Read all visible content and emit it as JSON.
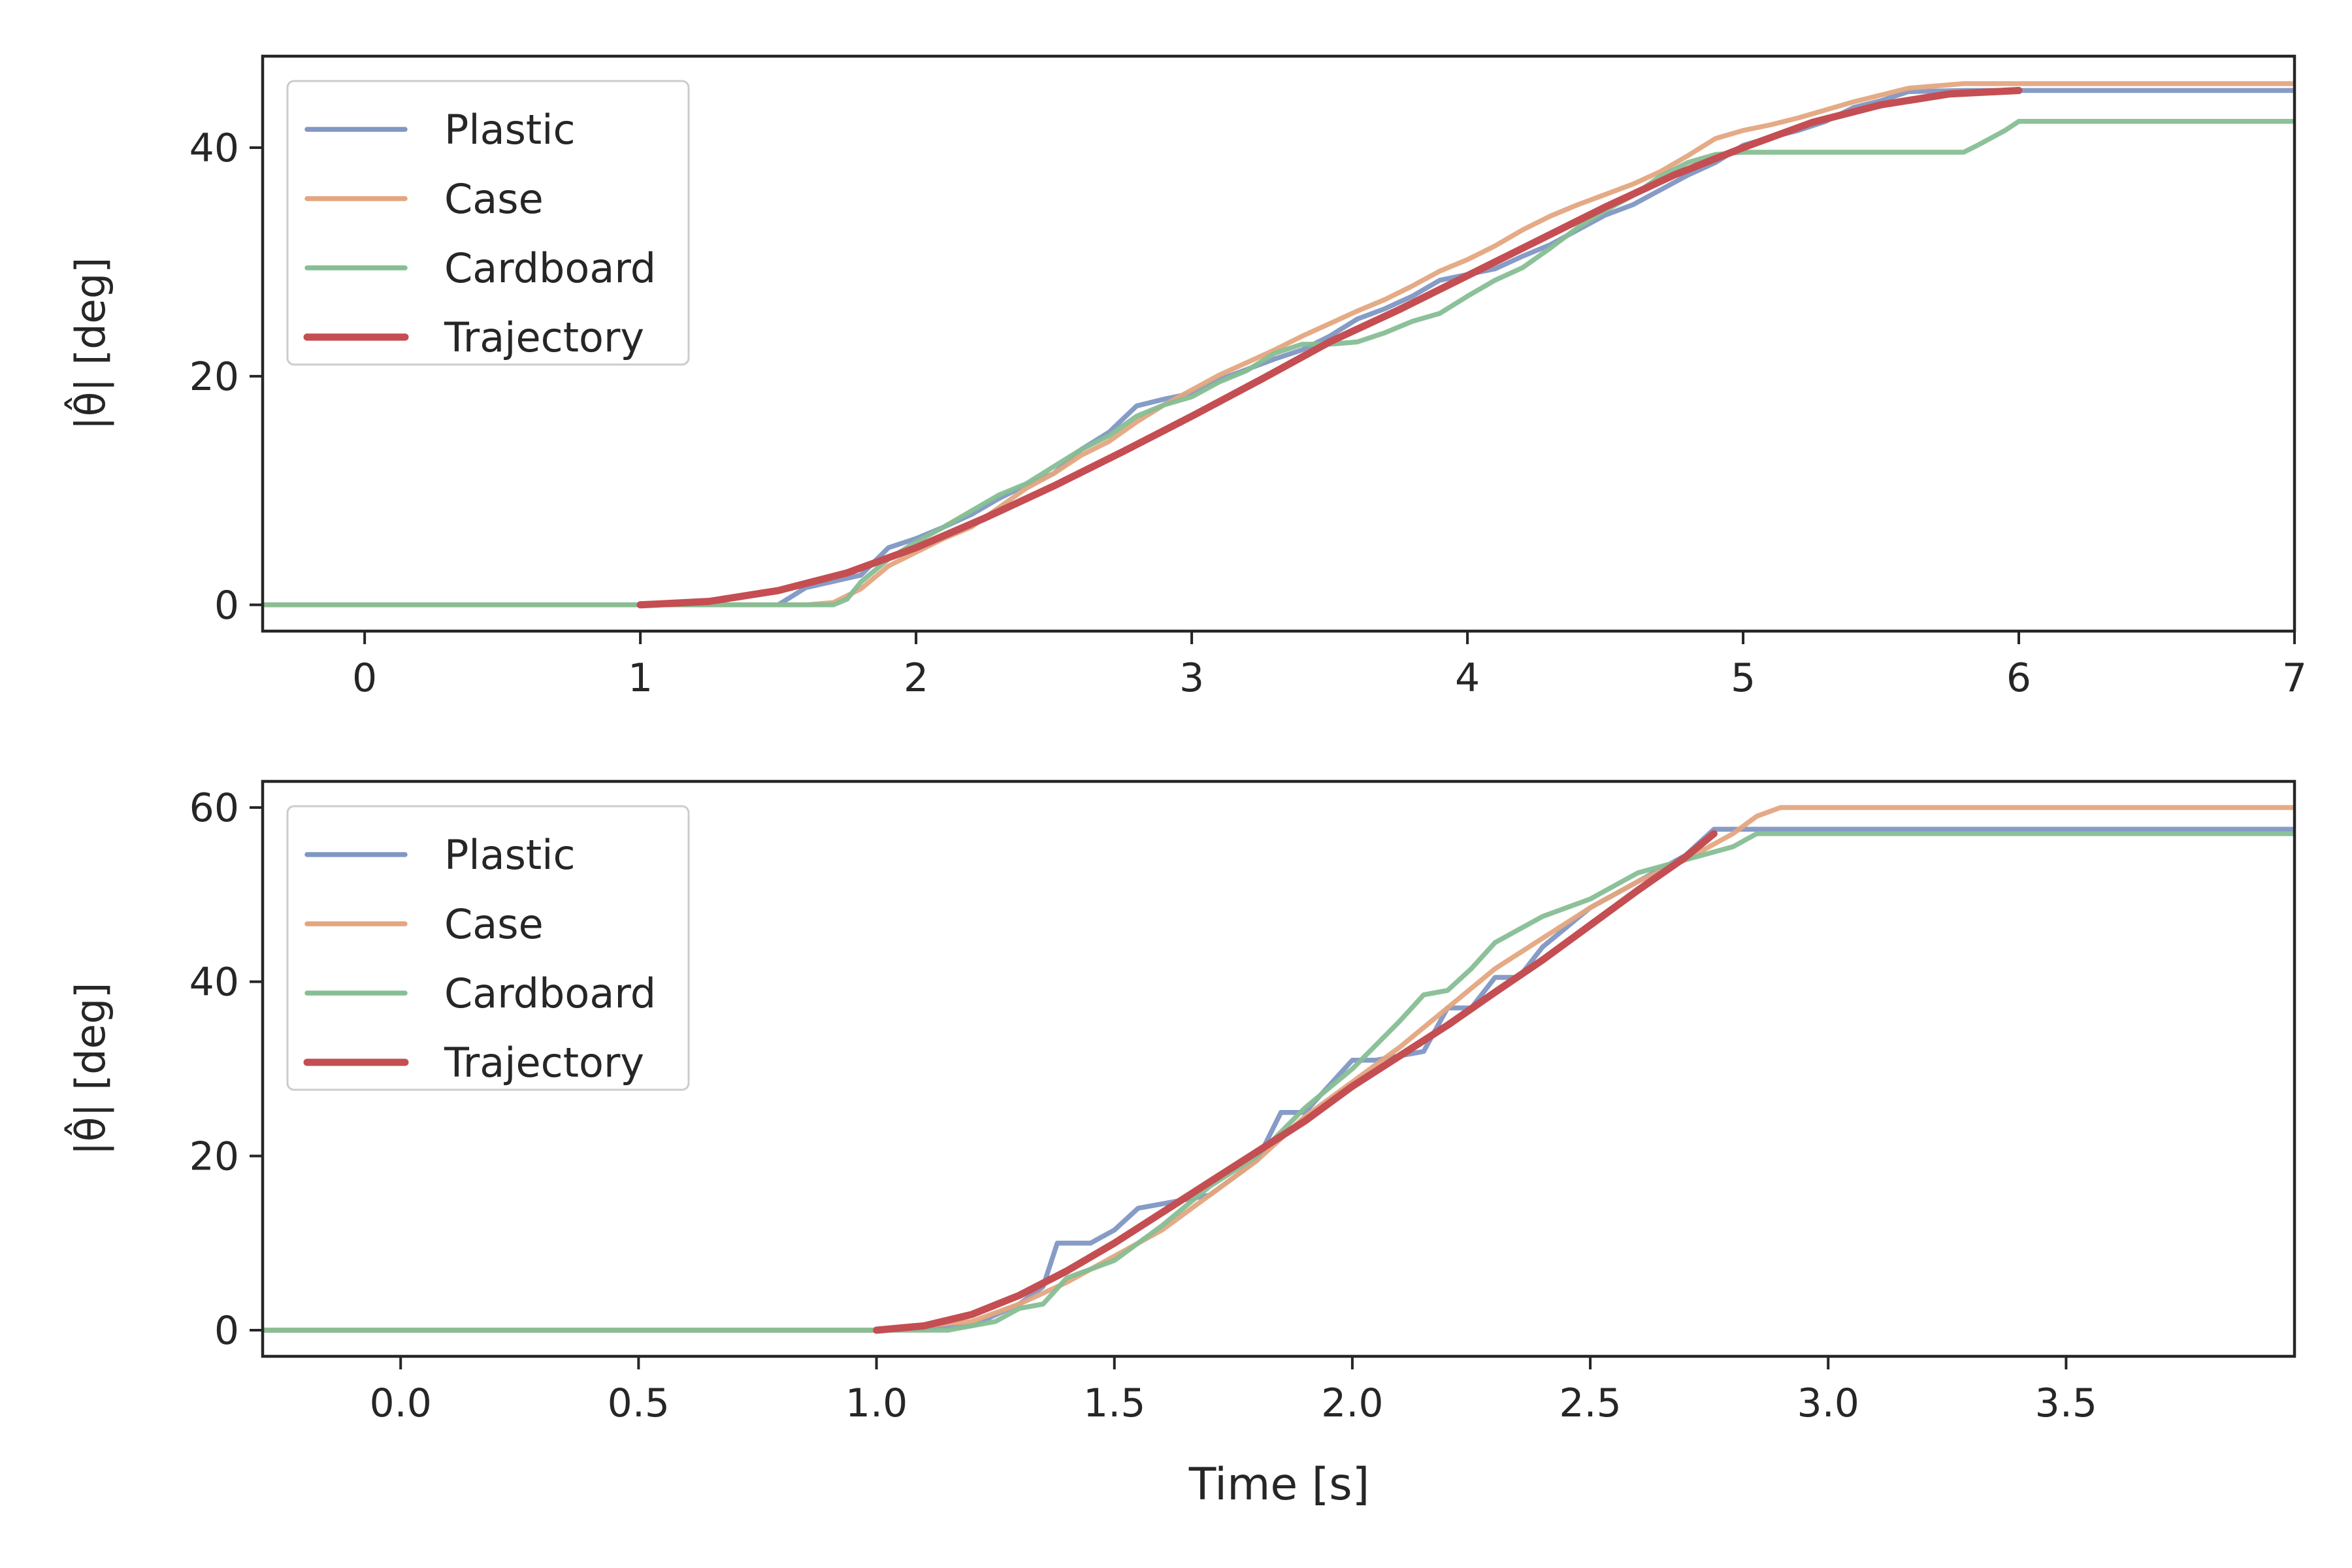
{
  "figure": {
    "xlabel": "Time [s]"
  },
  "chart_data": [
    {
      "type": "line",
      "title": "",
      "ylabel": "|θ̂| [deg]",
      "xlabel": "",
      "xlim": [
        -0.37,
        7.0
      ],
      "ylim": [
        -2.3,
        48.0
      ],
      "xticks": [
        0,
        1,
        2,
        3,
        4,
        5,
        6,
        7
      ],
      "xtick_labels": [
        "0",
        "1",
        "2",
        "3",
        "4",
        "5",
        "6",
        "7"
      ],
      "yticks": [
        0,
        20,
        40
      ],
      "ytick_labels": [
        "0",
        "20",
        "40"
      ],
      "legend_position": "top-left",
      "series": [
        {
          "name": "Plastic",
          "color": "#8097c4",
          "x": [
            -0.37,
            1.0,
            1.5,
            1.6,
            1.8,
            1.9,
            2.0,
            2.1,
            2.2,
            2.3,
            2.4,
            2.5,
            2.6,
            2.7,
            2.8,
            2.9,
            3.0,
            3.1,
            3.2,
            3.3,
            3.4,
            3.5,
            3.6,
            3.7,
            3.8,
            3.9,
            4.0,
            4.1,
            4.2,
            4.3,
            4.4,
            4.5,
            4.6,
            4.7,
            4.8,
            4.9,
            5.0,
            5.1,
            5.2,
            5.3,
            5.4,
            5.5,
            5.6,
            5.8,
            6.0,
            7.0
          ],
          "y": [
            0,
            0,
            0,
            1.5,
            2.6,
            5.0,
            5.8,
            6.8,
            7.9,
            9.3,
            10.5,
            11.5,
            13.6,
            15.1,
            17.4,
            18.0,
            18.5,
            19.7,
            20.6,
            21.5,
            22.3,
            23.5,
            25.0,
            25.9,
            27.0,
            28.4,
            28.9,
            29.4,
            30.5,
            31.5,
            32.8,
            34.1,
            35.0,
            36.3,
            37.6,
            38.7,
            40.2,
            40.9,
            41.5,
            42.3,
            43.5,
            44.1,
            44.9,
            45.0,
            45.0,
            45.0
          ]
        },
        {
          "name": "Case",
          "color": "#e4a580",
          "x": [
            -0.37,
            1.0,
            1.6,
            1.7,
            1.8,
            1.9,
            2.0,
            2.1,
            2.2,
            2.3,
            2.4,
            2.5,
            2.6,
            2.7,
            2.8,
            2.9,
            3.0,
            3.1,
            3.2,
            3.3,
            3.4,
            3.5,
            3.6,
            3.7,
            3.8,
            3.9,
            4.0,
            4.1,
            4.2,
            4.3,
            4.4,
            4.5,
            4.6,
            4.7,
            4.8,
            4.9,
            5.0,
            5.1,
            5.2,
            5.3,
            5.4,
            5.5,
            5.6,
            5.8,
            6.0,
            7.0
          ],
          "y": [
            0,
            0,
            0,
            0.2,
            1.4,
            3.4,
            4.6,
            5.8,
            6.8,
            8.5,
            10.2,
            11.5,
            13.1,
            14.3,
            16.0,
            17.5,
            18.8,
            20.1,
            21.2,
            22.3,
            23.5,
            24.6,
            25.7,
            26.7,
            27.9,
            29.2,
            30.2,
            31.4,
            32.8,
            34.0,
            35.0,
            35.9,
            36.8,
            37.9,
            39.3,
            40.8,
            41.5,
            42.0,
            42.6,
            43.3,
            44.0,
            44.6,
            45.2,
            45.6,
            45.6,
            45.6
          ]
        },
        {
          "name": "Cardboard",
          "color": "#86be94",
          "x": [
            -0.37,
            1.0,
            1.7,
            1.75,
            1.8,
            1.9,
            2.0,
            2.1,
            2.2,
            2.3,
            2.4,
            2.5,
            2.6,
            2.7,
            2.8,
            2.9,
            3.0,
            3.1,
            3.2,
            3.3,
            3.4,
            3.5,
            3.6,
            3.7,
            3.8,
            3.9,
            4.0,
            4.1,
            4.2,
            4.3,
            4.4,
            4.5,
            4.6,
            4.7,
            4.8,
            4.9,
            5.0,
            5.5,
            5.8,
            5.85,
            5.95,
            6.0,
            7.0
          ],
          "y": [
            0,
            0,
            0,
            0.5,
            2.0,
            4.0,
            5.5,
            6.8,
            8.2,
            9.6,
            10.6,
            12.1,
            13.6,
            14.8,
            16.5,
            17.5,
            18.2,
            19.5,
            20.5,
            22.0,
            22.8,
            22.8,
            23.0,
            23.8,
            24.8,
            25.5,
            27.0,
            28.4,
            29.5,
            31.2,
            33.0,
            34.5,
            35.8,
            37.5,
            38.7,
            39.4,
            39.6,
            39.6,
            39.6,
            40.2,
            41.5,
            42.3,
            42.3
          ]
        },
        {
          "name": "Trajectory",
          "color": "#c44e52",
          "x": [
            1.0,
            1.25,
            1.5,
            1.75,
            2.0,
            2.25,
            2.5,
            2.75,
            3.0,
            3.25,
            3.5,
            3.75,
            4.0,
            4.25,
            4.5,
            4.75,
            5.0,
            5.25,
            5.5,
            5.75,
            6.0
          ],
          "y": [
            0,
            0.3,
            1.25,
            2.8,
            5.0,
            7.6,
            10.4,
            13.4,
            16.5,
            19.7,
            23.0,
            25.8,
            28.8,
            31.8,
            34.8,
            37.6,
            40.0,
            42.2,
            43.75,
            44.7,
            45.0
          ]
        }
      ]
    },
    {
      "type": "line",
      "title": "",
      "ylabel": "|θ̂| [deg]",
      "xlabel": "Time [s]",
      "xlim": [
        -0.29,
        3.98
      ],
      "ylim": [
        -3.0,
        63.0
      ],
      "xticks": [
        0.0,
        0.5,
        1.0,
        1.5,
        2.0,
        2.5,
        3.0,
        3.5
      ],
      "xtick_labels": [
        "0.0",
        "0.5",
        "1.0",
        "1.5",
        "2.0",
        "2.5",
        "3.0",
        "3.5"
      ],
      "yticks": [
        0,
        20,
        40,
        60
      ],
      "ytick_labels": [
        "0",
        "20",
        "40",
        "60"
      ],
      "legend_position": "top-left",
      "series": [
        {
          "name": "Plastic",
          "color": "#8097c4",
          "x": [
            -0.29,
            1.0,
            1.2,
            1.3,
            1.35,
            1.38,
            1.45,
            1.5,
            1.55,
            1.6,
            1.7,
            1.8,
            1.85,
            1.9,
            2.0,
            2.05,
            2.1,
            2.15,
            2.2,
            2.25,
            2.3,
            2.35,
            2.4,
            2.5,
            2.6,
            2.7,
            2.76,
            3.0,
            3.98
          ],
          "y": [
            0,
            0,
            0.5,
            3.0,
            5.0,
            10.0,
            10.0,
            11.5,
            14.0,
            14.5,
            15.5,
            19.5,
            25.0,
            25.0,
            31.0,
            31.0,
            31.5,
            32.0,
            37.0,
            37.0,
            40.5,
            40.5,
            44.0,
            48.5,
            51.5,
            54.5,
            57.5,
            57.5,
            57.5
          ]
        },
        {
          "name": "Case",
          "color": "#e4a580",
          "x": [
            -0.29,
            1.0,
            1.2,
            1.3,
            1.4,
            1.5,
            1.6,
            1.7,
            1.8,
            1.9,
            2.0,
            2.1,
            2.2,
            2.3,
            2.4,
            2.5,
            2.6,
            2.7,
            2.8,
            2.85,
            2.9,
            3.98
          ],
          "y": [
            0,
            0,
            1.0,
            3.0,
            5.5,
            8.5,
            11.5,
            15.5,
            19.5,
            24.5,
            28.5,
            32.5,
            37.0,
            41.5,
            45.0,
            48.5,
            51.5,
            54.0,
            57.0,
            59.0,
            60.0,
            60.0
          ]
        },
        {
          "name": "Cardboard",
          "color": "#86be94",
          "x": [
            -0.29,
            1.0,
            1.15,
            1.25,
            1.3,
            1.35,
            1.4,
            1.5,
            1.6,
            1.7,
            1.8,
            1.9,
            2.0,
            2.1,
            2.15,
            2.2,
            2.25,
            2.3,
            2.4,
            2.5,
            2.6,
            2.7,
            2.8,
            2.85,
            3.98
          ],
          "y": [
            0,
            0,
            0,
            1.0,
            2.5,
            3.0,
            6.0,
            8.0,
            12.0,
            16.5,
            20.0,
            25.5,
            30.0,
            35.5,
            38.5,
            39.0,
            41.5,
            44.5,
            47.5,
            49.5,
            52.5,
            54.0,
            55.5,
            57.0,
            57.0
          ]
        },
        {
          "name": "Trajectory",
          "color": "#c44e52",
          "x": [
            1.0,
            1.1,
            1.2,
            1.3,
            1.4,
            1.5,
            1.6,
            1.7,
            1.8,
            1.9,
            2.0,
            2.1,
            2.2,
            2.3,
            2.4,
            2.5,
            2.6,
            2.7,
            2.76
          ],
          "y": [
            0,
            0.5,
            1.8,
            4.0,
            6.8,
            10.0,
            13.5,
            17.0,
            20.5,
            24.0,
            28.0,
            31.5,
            35.0,
            38.8,
            42.5,
            46.5,
            50.5,
            54.3,
            57.0
          ]
        }
      ]
    }
  ]
}
